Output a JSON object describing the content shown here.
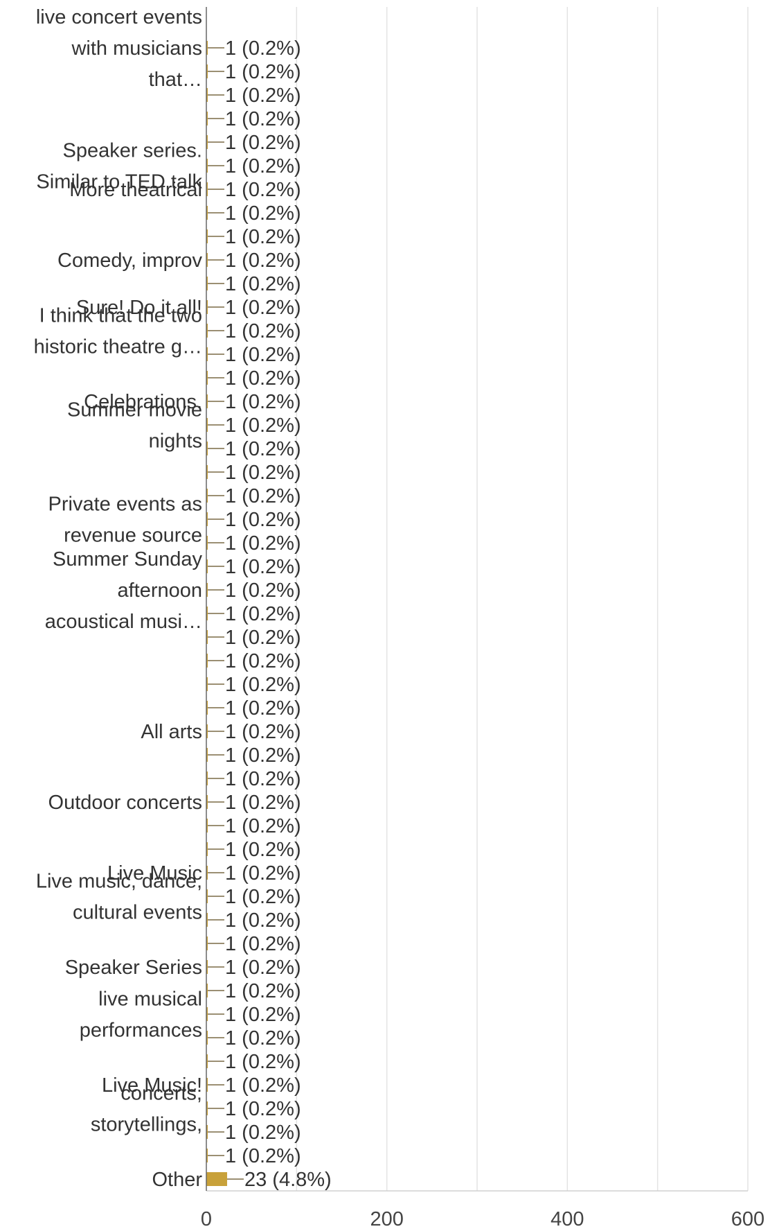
{
  "chart_data": {
    "type": "bar",
    "orientation": "horizontal",
    "categories": [
      "live concert events with musicians that…",
      "",
      "",
      "",
      "",
      "Speaker series. Similar to TED talk",
      "More theatrical",
      "",
      "",
      "Comedy, improv",
      "",
      "Sure! Do it all!",
      "I think that the two historic theatre g…",
      "",
      "",
      "Celebrations.",
      "Summer movie nights",
      "",
      "",
      "",
      "Private events as revenue source",
      "",
      "",
      "Summer Sunday afternoon acoustical musi…",
      "",
      "",
      "",
      "",
      "",
      "All arts",
      "",
      "",
      "Outdoor concerts",
      "",
      "",
      "Live Music",
      "Live music, dance, cultural events",
      "",
      "",
      "Speaker Series",
      "",
      "live musical performances",
      "",
      "",
      "Live Music!",
      "concerts, storytellings,",
      "",
      "",
      "Other"
    ],
    "label_lines": [
      [
        "live concert events",
        "with musicians",
        "that…"
      ],
      [],
      [],
      [],
      [],
      [
        "Speaker series.",
        "Similar to TED talk"
      ],
      [
        "More theatrical"
      ],
      [],
      [],
      [
        "Comedy, improv"
      ],
      [],
      [
        "Sure! Do it all!"
      ],
      [
        "I think that the two",
        "historic theatre g…"
      ],
      [],
      [],
      [
        "Celebrations."
      ],
      [
        "Summer movie",
        "nights"
      ],
      [],
      [],
      [],
      [
        "Private events as",
        "revenue source"
      ],
      [],
      [],
      [
        "Summer Sunday",
        "afternoon",
        "acoustical musi…"
      ],
      [],
      [],
      [],
      [],
      [],
      [
        "All arts"
      ],
      [],
      [],
      [
        "Outdoor concerts"
      ],
      [],
      [],
      [
        "Live Music"
      ],
      [
        "Live music, dance,",
        "cultural events"
      ],
      [],
      [],
      [
        "Speaker Series"
      ],
      [],
      [
        "live musical",
        "performances"
      ],
      [],
      [],
      [
        "Live Music!"
      ],
      [
        "concerts,",
        "storytellings,"
      ],
      [],
      [],
      [
        "Other"
      ]
    ],
    "values": [
      1,
      1,
      1,
      1,
      1,
      1,
      1,
      1,
      1,
      1,
      1,
      1,
      1,
      1,
      1,
      1,
      1,
      1,
      1,
      1,
      1,
      1,
      1,
      1,
      1,
      1,
      1,
      1,
      1,
      1,
      1,
      1,
      1,
      1,
      1,
      1,
      1,
      1,
      1,
      1,
      1,
      1,
      1,
      1,
      1,
      1,
      1,
      1,
      23
    ],
    "value_labels": [
      "1 (0.2%)",
      "1 (0.2%)",
      "1 (0.2%)",
      "1 (0.2%)",
      "1 (0.2%)",
      "1 (0.2%)",
      "1 (0.2%)",
      "1 (0.2%)",
      "1 (0.2%)",
      "1 (0.2%)",
      "1 (0.2%)",
      "1 (0.2%)",
      "1 (0.2%)",
      "1 (0.2%)",
      "1 (0.2%)",
      "1 (0.2%)",
      "1 (0.2%)",
      "1 (0.2%)",
      "1 (0.2%)",
      "1 (0.2%)",
      "1 (0.2%)",
      "1 (0.2%)",
      "1 (0.2%)",
      "1 (0.2%)",
      "1 (0.2%)",
      "1 (0.2%)",
      "1 (0.2%)",
      "1 (0.2%)",
      "1 (0.2%)",
      "1 (0.2%)",
      "1 (0.2%)",
      "1 (0.2%)",
      "1 (0.2%)",
      "1 (0.2%)",
      "1 (0.2%)",
      "1 (0.2%)",
      "1 (0.2%)",
      "1 (0.2%)",
      "1 (0.2%)",
      "1 (0.2%)",
      "1 (0.2%)",
      "1 (0.2%)",
      "1 (0.2%)",
      "1 (0.2%)",
      "1 (0.2%)",
      "1 (0.2%)",
      "1 (0.2%)",
      "1 (0.2%)",
      "23 (4.8%)"
    ],
    "x_ticks": [
      0,
      200,
      400,
      600
    ],
    "x_tick_labels": [
      "0",
      "200",
      "400",
      "600"
    ],
    "xlim": [
      0,
      600
    ],
    "grid": "vertical",
    "title": "",
    "xlabel": "",
    "ylabel": "",
    "bar_color": "#c8a13a",
    "leader_color": "#7a6a45",
    "grid_color": "#e3e3e3",
    "text_color": "#333333"
  }
}
